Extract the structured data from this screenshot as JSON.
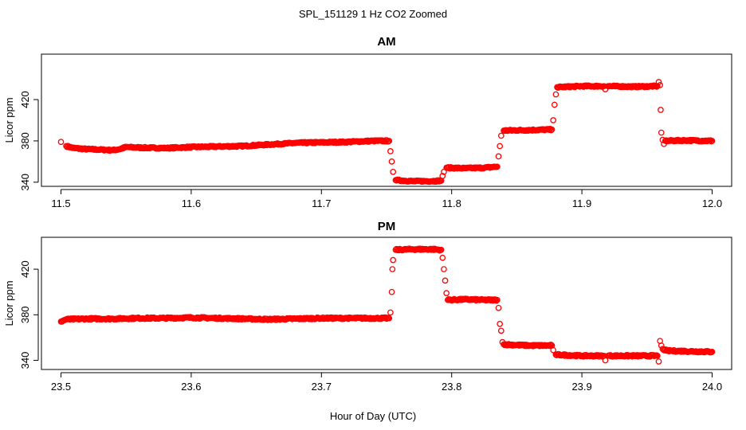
{
  "figure": {
    "title": "SPL_151129  1 Hz CO2 Zoomed",
    "xlabel": "Hour of Day (UTC)"
  },
  "chart_data": [
    {
      "type": "scatter",
      "title": "AM",
      "ylabel": "Licor ppm",
      "xlim": [
        11.485,
        12.015
      ],
      "ylim": [
        336,
        464
      ],
      "x_ticks": [
        11.5,
        11.6,
        11.7,
        11.8,
        11.9,
        12.0
      ],
      "x_tick_labels": [
        "11.5",
        "11.6",
        "11.7",
        "11.8",
        "11.9",
        "12.0"
      ],
      "y_ticks": [
        340,
        380,
        420
      ],
      "y_tick_labels": [
        "340",
        "380",
        "420"
      ],
      "marker_color": "#ff0000",
      "marker": "open-circle",
      "points": [
        [
          11.5,
          379
        ],
        [
          11.504,
          375
        ],
        [
          11.51,
          373
        ],
        [
          11.52,
          372
        ],
        [
          11.53,
          371.5
        ],
        [
          11.54,
          371
        ],
        [
          11.545,
          372
        ],
        [
          11.55,
          374
        ],
        [
          11.56,
          373.5
        ],
        [
          11.58,
          373
        ],
        [
          11.6,
          374
        ],
        [
          11.62,
          374.5
        ],
        [
          11.64,
          375
        ],
        [
          11.66,
          376.5
        ],
        [
          11.68,
          378
        ],
        [
          11.7,
          378.5
        ],
        [
          11.72,
          379
        ],
        [
          11.74,
          380
        ],
        [
          11.752,
          380
        ],
        [
          11.753,
          370
        ],
        [
          11.754,
          360
        ],
        [
          11.755,
          350
        ],
        [
          11.757,
          342
        ],
        [
          11.77,
          341
        ],
        [
          11.785,
          341
        ],
        [
          11.792,
          341.5
        ],
        [
          11.793,
          346
        ],
        [
          11.794,
          350
        ],
        [
          11.796,
          354
        ],
        [
          11.81,
          353.5
        ],
        [
          11.825,
          354
        ],
        [
          11.835,
          355
        ],
        [
          11.836,
          365
        ],
        [
          11.837,
          375
        ],
        [
          11.838,
          385
        ],
        [
          11.84,
          390
        ],
        [
          11.86,
          390.5
        ],
        [
          11.877,
          391
        ],
        [
          11.878,
          400
        ],
        [
          11.879,
          415
        ],
        [
          11.88,
          425
        ],
        [
          11.881,
          432
        ],
        [
          11.9,
          433
        ],
        [
          11.917,
          433
        ],
        [
          11.918,
          430
        ],
        [
          11.92,
          433
        ],
        [
          11.94,
          432.5
        ],
        [
          11.958,
          433
        ],
        [
          11.959,
          437
        ],
        [
          11.96,
          434
        ],
        [
          11.9605,
          410
        ],
        [
          11.961,
          388
        ],
        [
          11.962,
          381
        ],
        [
          11.963,
          377
        ],
        [
          11.964,
          380
        ],
        [
          11.98,
          380.5
        ],
        [
          12.0,
          380
        ]
      ]
    },
    {
      "type": "scatter",
      "title": "PM",
      "ylabel": "Licor ppm",
      "xlim": [
        23.485,
        24.015
      ],
      "ylim": [
        332,
        448
      ],
      "x_ticks": [
        23.5,
        23.6,
        23.7,
        23.8,
        23.9,
        24.0
      ],
      "x_tick_labels": [
        "23.5",
        "23.6",
        "23.7",
        "23.8",
        "23.9",
        "24.0"
      ],
      "y_ticks": [
        340,
        380,
        420
      ],
      "y_tick_labels": [
        "340",
        "380",
        "420"
      ],
      "marker_color": "#ff0000",
      "marker": "open-circle",
      "points": [
        [
          23.5,
          374
        ],
        [
          23.504,
          376
        ],
        [
          23.52,
          376.5
        ],
        [
          23.54,
          376.5
        ],
        [
          23.56,
          377
        ],
        [
          23.58,
          377
        ],
        [
          23.6,
          377.5
        ],
        [
          23.62,
          377
        ],
        [
          23.64,
          376.5
        ],
        [
          23.66,
          376
        ],
        [
          23.68,
          376.5
        ],
        [
          23.7,
          377
        ],
        [
          23.72,
          377
        ],
        [
          23.74,
          377
        ],
        [
          23.752,
          377
        ],
        [
          23.753,
          382
        ],
        [
          23.754,
          400
        ],
        [
          23.7545,
          420
        ],
        [
          23.755,
          428
        ],
        [
          23.757,
          437
        ],
        [
          23.77,
          437.5
        ],
        [
          23.785,
          437.5
        ],
        [
          23.792,
          437
        ],
        [
          23.793,
          430
        ],
        [
          23.794,
          420
        ],
        [
          23.795,
          410
        ],
        [
          23.796,
          399
        ],
        [
          23.797,
          393
        ],
        [
          23.81,
          393.5
        ],
        [
          23.825,
          393
        ],
        [
          23.835,
          393
        ],
        [
          23.836,
          386
        ],
        [
          23.837,
          372
        ],
        [
          23.838,
          366
        ],
        [
          23.839,
          356
        ],
        [
          23.84,
          354
        ],
        [
          23.86,
          353
        ],
        [
          23.877,
          353
        ],
        [
          23.878,
          349
        ],
        [
          23.88,
          345
        ],
        [
          23.9,
          344
        ],
        [
          23.917,
          344
        ],
        [
          23.918,
          340
        ],
        [
          23.92,
          344
        ],
        [
          23.94,
          344
        ],
        [
          23.958,
          344
        ],
        [
          23.959,
          339
        ],
        [
          23.96,
          357
        ],
        [
          23.961,
          353
        ],
        [
          23.962,
          350
        ],
        [
          23.965,
          348.5
        ],
        [
          23.98,
          348
        ],
        [
          24.0,
          347.5
        ]
      ]
    }
  ]
}
